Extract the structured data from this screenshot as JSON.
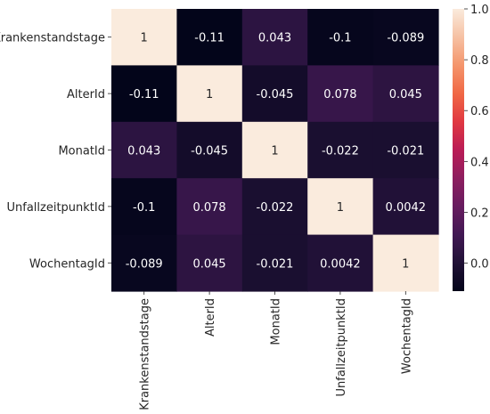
{
  "chart_data": {
    "type": "heatmap",
    "rows": [
      "Krankenstandstage",
      "AlterId",
      "MonatId",
      "UnfallzeitpunktId",
      "WochentagId"
    ],
    "cols": [
      "Krankenstandstage",
      "AlterId",
      "MonatId",
      "UnfallzeitpunktId",
      "WochentagId"
    ],
    "values": [
      [
        1,
        -0.11,
        0.043,
        -0.1,
        -0.089
      ],
      [
        -0.11,
        1,
        -0.045,
        0.078,
        0.045
      ],
      [
        0.043,
        -0.045,
        1,
        -0.022,
        -0.021
      ],
      [
        -0.1,
        0.078,
        -0.022,
        1,
        0.0042
      ],
      [
        -0.089,
        0.045,
        -0.021,
        0.0042,
        1
      ]
    ],
    "cell_labels": [
      [
        "1",
        "-0.11",
        "0.043",
        "-0.1",
        "-0.089"
      ],
      [
        "-0.11",
        "1",
        "-0.045",
        "0.078",
        "0.045"
      ],
      [
        "0.043",
        "-0.045",
        "1",
        "-0.022",
        "-0.021"
      ],
      [
        "-0.1",
        "0.078",
        "-0.022",
        "1",
        "0.0042"
      ],
      [
        "-0.089",
        "0.045",
        "-0.021",
        "0.0042",
        "1"
      ]
    ],
    "colorbar": {
      "min": -0.11,
      "max": 1.0,
      "ticks": [
        "1.0",
        "0.8",
        "0.6",
        "0.4",
        "0.2",
        "0.0"
      ],
      "tick_values": [
        1.0,
        0.8,
        0.6,
        0.4,
        0.2,
        0.0
      ],
      "colormap": "rocket"
    }
  }
}
